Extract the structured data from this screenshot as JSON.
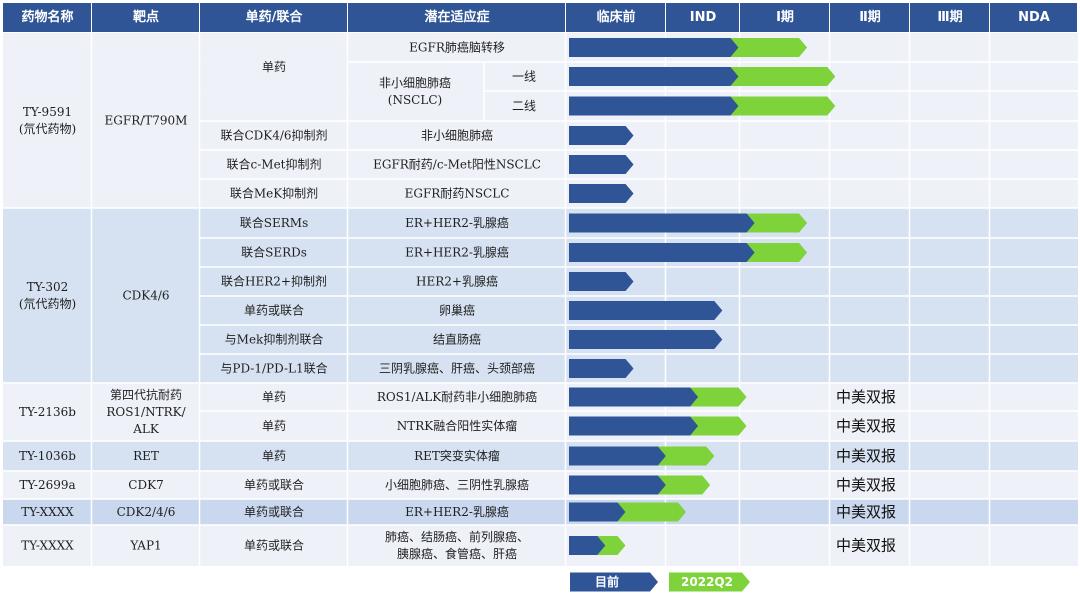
{
  "colors": {
    "header_bg": "#2f5597",
    "band_light": "#eef1f8",
    "band_blue": "#d6e2f2",
    "bar_current": "#2f5597",
    "bar_target": "#7fd33a",
    "grid": "#ffffff"
  },
  "header": [
    "药物名称",
    "靶点",
    "单药/联合",
    "潜在适应症",
    "临床前",
    "IND",
    "Ⅰ期",
    "Ⅱ期",
    "Ⅲ期",
    "NDA"
  ],
  "drugs": [
    {
      "name": [
        "TY-9591",
        "(氘代药物)"
      ],
      "target": [
        "EGFR/T790M"
      ]
    },
    {
      "name": [
        "TY-302",
        "(氘代药物)"
      ],
      "target": [
        "CDK4/6"
      ]
    },
    {
      "name": [
        "TY-2136b"
      ],
      "target": [
        "第四代抗耐药",
        "ROS1/NTRK/",
        "ALK"
      ]
    },
    {
      "name": [
        "TY-1036b"
      ],
      "target": [
        "RET"
      ]
    },
    {
      "name": [
        "TY-2699a"
      ],
      "target": [
        "CDK7"
      ]
    },
    {
      "name": [
        "TY-XXXX"
      ],
      "target": [
        "CDK2/4/6"
      ]
    },
    {
      "name": [
        "TY-XXXX"
      ],
      "target": [
        "YAP1"
      ]
    }
  ],
  "programs": [
    {
      "combo": "单药",
      "indication": [
        "EGFR肺癌脑转移"
      ]
    },
    {
      "combo": "单药",
      "indication": [
        "非小细胞肺癌",
        "(NSCLC)"
      ],
      "line": "一线"
    },
    {
      "combo": "单药",
      "indication": [
        "非小细胞肺癌",
        "(NSCLC)"
      ],
      "line": "二线"
    },
    {
      "combo": "联合CDK4/6抑制剂",
      "indication": [
        "非小细胞肺癌"
      ]
    },
    {
      "combo": "联合c-Met抑制剂",
      "indication": [
        "EGFR耐药/c-Met阳性NSCLC"
      ]
    },
    {
      "combo": "联合MeK抑制剂",
      "indication": [
        "EGFR耐药NSCLC"
      ]
    },
    {
      "combo": "联合SERMs",
      "indication": [
        "ER+HER2-乳腺癌"
      ]
    },
    {
      "combo": "联合SERDs",
      "indication": [
        "ER+HER2-乳腺癌"
      ]
    },
    {
      "combo": "联合HER2+抑制剂",
      "indication": [
        "HER2+乳腺癌"
      ]
    },
    {
      "combo": "单药或联合",
      "indication": [
        "卵巢癌"
      ]
    },
    {
      "combo": "与Mek抑制剂联合",
      "indication": [
        "结直肠癌"
      ]
    },
    {
      "combo": "与PD-1/PD-L1联合",
      "indication": [
        "三阴乳腺癌、肝癌、头颈部癌"
      ]
    },
    {
      "combo": "单药",
      "indication": [
        "ROS1/ALK耐药非小细胞肺癌"
      ],
      "note": "中美双报"
    },
    {
      "combo": "单药",
      "indication": [
        "NTRK融合阳性实体瘤"
      ],
      "note": "中美双报"
    },
    {
      "combo": "单药",
      "indication": [
        "RET突变实体瘤"
      ],
      "note": "中美双报"
    },
    {
      "combo": "单药或联合",
      "indication": [
        "小细胞肺癌、三阴性乳腺癌"
      ],
      "note": "中美双报"
    },
    {
      "combo": "单药或联合",
      "indication": [
        "ER+HER2-乳腺癌"
      ],
      "note": "中美双报"
    },
    {
      "combo": "单药或联合",
      "indication": [
        "肺癌、结肠癌、前列腺癌、",
        "胰腺癌、食管癌、肝癌"
      ],
      "note": "中美双报"
    }
  ],
  "chart_data": {
    "type": "bar",
    "stages": [
      "临床前",
      "IND",
      "Ⅰ期",
      "Ⅱ期",
      "Ⅲ期",
      "NDA"
    ],
    "series": [
      {
        "name": "目前",
        "values": [
          2.1,
          2.1,
          2.1,
          0.8,
          0.8,
          0.8,
          2.3,
          2.3,
          0.8,
          1.9,
          1.9,
          0.8,
          1.6,
          1.6,
          1.2,
          1.2,
          0.7,
          0.45
        ]
      },
      {
        "name": "2022Q2",
        "values": [
          2.95,
          3.3,
          3.3,
          null,
          null,
          null,
          2.95,
          2.95,
          null,
          null,
          null,
          null,
          2.2,
          2.2,
          1.8,
          1.75,
          1.45,
          0.7
        ]
      }
    ],
    "xlim": [
      0,
      6
    ]
  },
  "legend": {
    "current": "目前",
    "target": "2022Q2"
  }
}
